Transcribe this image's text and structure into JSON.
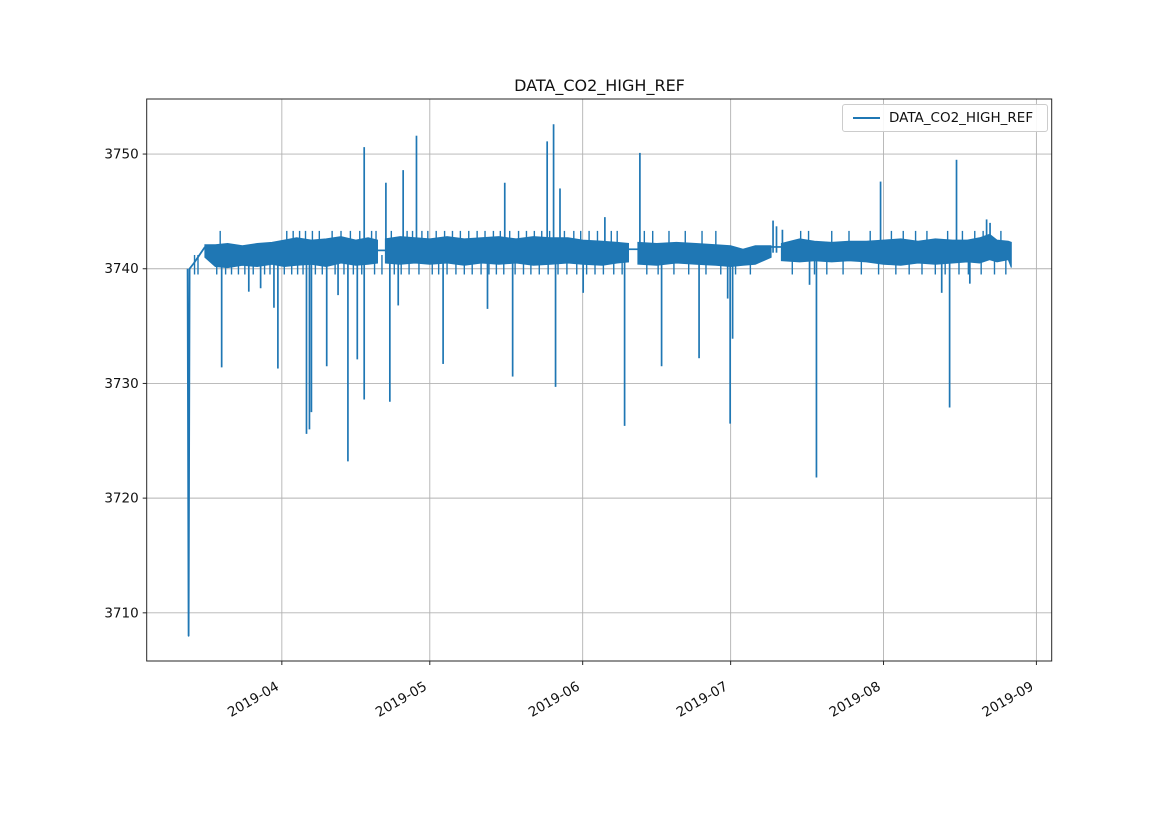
{
  "figure": {
    "title": "DATA_CO2_HIGH_REF",
    "background_color": "#ffffff"
  },
  "legend": {
    "label": "DATA_CO2_HIGH_REF",
    "line_sample_color": "#1f77b4"
  },
  "chart_data": {
    "type": "line",
    "title": "DATA_CO2_HIGH_REF",
    "line_color": "#1f77b4",
    "grid": true,
    "grid_color": "#b2b2b2",
    "legend": {
      "entries": [
        "DATA_CO2_HIGH_REF"
      ],
      "position": "upper right"
    },
    "x_axis": {
      "unit": "date",
      "tick_labels": [
        "2019-04",
        "2019-05",
        "2019-06",
        "2019-07",
        "2019-08",
        "2019-09"
      ],
      "tick_day_of_year": [
        91,
        121,
        152,
        182,
        213,
        244
      ],
      "range_day_of_year": [
        63.6,
        247.1
      ],
      "tick_label_rotation_deg": 30
    },
    "y_axis": {
      "ticks": [
        3710,
        3720,
        3730,
        3740,
        3750
      ],
      "range": [
        3705.8,
        3754.8
      ]
    },
    "series": [
      {
        "name": "DATA_CO2_HIGH_REF",
        "x_unit": "day_of_year_2019",
        "date_span": [
          "2019-03-13",
          "2019-08-27"
        ],
        "lead_in_points": [
          [
            71.9,
            3740.0
          ],
          [
            72.1,
            3708.0
          ],
          [
            72.3,
            3740.0
          ],
          [
            73.2,
            3740.5
          ],
          [
            75.4,
            3741.9
          ]
        ],
        "noise_band_segments": [
          [
            [
              75.4,
              3741.0,
              3742.1
            ],
            [
              77.5,
              3740.2,
              3742.1
            ],
            [
              80,
              3740.1,
              3742.2
            ],
            [
              83,
              3740.3,
              3742.0
            ],
            [
              86,
              3740.2,
              3742.2
            ],
            [
              89,
              3740.4,
              3742.3
            ],
            [
              91.5,
              3740.2,
              3742.5
            ],
            [
              94,
              3740.3,
              3742.7
            ],
            [
              97,
              3740.4,
              3742.5
            ],
            [
              100,
              3740.2,
              3742.6
            ],
            [
              103,
              3740.5,
              3742.8
            ],
            [
              106,
              3740.3,
              3742.5
            ],
            [
              108.5,
              3740.4,
              3742.7
            ],
            [
              110.4,
              3740.5,
              3742.5
            ]
          ],
          [
            [
              112.0,
              3740.5,
              3742.6
            ],
            [
              115,
              3740.4,
              3742.8
            ],
            [
              118,
              3740.5,
              3742.7
            ],
            [
              121,
              3740.4,
              3742.6
            ],
            [
              124.5,
              3740.5,
              3742.8
            ],
            [
              128,
              3740.3,
              3742.6
            ],
            [
              131.5,
              3740.5,
              3742.7
            ],
            [
              135,
              3740.4,
              3742.8
            ],
            [
              138.5,
              3740.5,
              3742.6
            ],
            [
              142,
              3740.3,
              3742.8
            ],
            [
              145.5,
              3740.4,
              3742.7
            ],
            [
              149,
              3740.5,
              3742.7
            ],
            [
              152,
              3740.4,
              3742.5
            ],
            [
              156,
              3740.3,
              3742.4
            ],
            [
              159,
              3740.5,
              3742.3
            ],
            [
              161.3,
              3740.6,
              3742.2
            ]
          ],
          [
            [
              163.2,
              3740.4,
              3742.3
            ],
            [
              167,
              3740.3,
              3742.2
            ],
            [
              171,
              3740.5,
              3742.3
            ],
            [
              175,
              3740.4,
              3742.2
            ],
            [
              179,
              3740.3,
              3742.1
            ],
            [
              182,
              3740.2,
              3742.0
            ],
            [
              184.5,
              3740.3,
              3741.7
            ],
            [
              187,
              3740.4,
              3742.0
            ],
            [
              190.2,
              3741.0,
              3742.0
            ]
          ],
          [
            [
              192.3,
              3740.7,
              3742.2
            ],
            [
              196,
              3740.6,
              3742.6
            ],
            [
              199,
              3740.7,
              3742.4
            ],
            [
              202.5,
              3740.6,
              3742.3
            ],
            [
              206,
              3740.7,
              3742.4
            ],
            [
              209.5,
              3740.6,
              3742.4
            ],
            [
              213,
              3740.4,
              3742.5
            ],
            [
              216.5,
              3740.3,
              3742.6
            ],
            [
              220,
              3740.5,
              3742.4
            ],
            [
              223.5,
              3740.4,
              3742.6
            ],
            [
              227,
              3740.5,
              3742.5
            ],
            [
              230,
              3740.6,
              3742.5
            ],
            [
              232.5,
              3740.5,
              3742.7
            ],
            [
              234.5,
              3740.8,
              3743.0
            ],
            [
              236,
              3740.6,
              3742.5
            ],
            [
              238.3,
              3740.8,
              3742.4
            ],
            [
              238.9,
              3740.1,
              3742.3
            ]
          ]
        ],
        "flat_segments": [
          [
            110.4,
            112.0,
            3741.6
          ],
          [
            161.3,
            163.2,
            3741.7
          ],
          [
            190.2,
            192.3,
            3741.9
          ]
        ],
        "up_spikes": [
          [
            107.7,
            3750.6
          ],
          [
            112.1,
            3747.5
          ],
          [
            115.6,
            3748.6
          ],
          [
            118.3,
            3751.6
          ],
          [
            136.2,
            3747.5
          ],
          [
            144.8,
            3751.1
          ],
          [
            146.1,
            3752.6
          ],
          [
            147.4,
            3747.0
          ],
          [
            156.5,
            3744.5
          ],
          [
            163.6,
            3750.1
          ],
          [
            190.6,
            3744.2
          ],
          [
            191.3,
            3743.7
          ],
          [
            192.5,
            3743.4
          ],
          [
            212.4,
            3747.6
          ],
          [
            227.8,
            3749.5
          ],
          [
            233.9,
            3744.3
          ],
          [
            234.6,
            3744.0
          ]
        ],
        "down_spikes": [
          [
            78.8,
            3731.4
          ],
          [
            84.3,
            3738.0
          ],
          [
            86.7,
            3738.3
          ],
          [
            89.4,
            3736.6
          ],
          [
            90.2,
            3731.3
          ],
          [
            96.0,
            3725.6
          ],
          [
            96.6,
            3726.0
          ],
          [
            97.0,
            3727.5
          ],
          [
            100.1,
            3731.5
          ],
          [
            102.4,
            3737.7
          ],
          [
            104.4,
            3723.2
          ],
          [
            106.3,
            3732.1
          ],
          [
            107.7,
            3728.6
          ],
          [
            112.9,
            3728.4
          ],
          [
            114.6,
            3736.8
          ],
          [
            123.7,
            3731.7
          ],
          [
            132.7,
            3736.5
          ],
          [
            137.8,
            3730.6
          ],
          [
            146.5,
            3729.7
          ],
          [
            152.1,
            3737.9
          ],
          [
            160.5,
            3726.3
          ],
          [
            168.0,
            3731.5
          ],
          [
            175.6,
            3732.2
          ],
          [
            181.4,
            3737.4
          ],
          [
            181.9,
            3726.5
          ],
          [
            182.4,
            3733.9
          ],
          [
            198.0,
            3738.6
          ],
          [
            199.4,
            3721.8
          ],
          [
            224.8,
            3737.9
          ],
          [
            226.4,
            3727.9
          ],
          [
            230.5,
            3738.7
          ]
        ],
        "minor_up_ticks": {
          "value": 3743.3,
          "days": [
            78.5,
            92.0,
            93.3,
            94.6,
            95.8,
            97.2,
            98.6,
            101.2,
            103.0,
            104.9,
            106.8,
            109.2,
            110.1,
            113.2,
            116.4,
            117.5,
            119.4,
            120.6,
            122.3,
            124.0,
            125.6,
            127.2,
            128.9,
            130.6,
            132.2,
            133.9,
            135.3,
            137.2,
            139.0,
            140.6,
            142.2,
            143.7,
            145.3,
            148.3,
            150.2,
            151.6,
            153.3,
            155.0,
            157.8,
            159.0,
            164.5,
            166.2,
            169.5,
            172.8,
            176.2,
            179.0,
            196.2,
            197.8,
            202.5,
            206.0,
            210.3,
            214.6,
            217.0,
            219.5,
            221.8,
            226.0,
            229.0,
            231.5,
            233.2,
            236.8
          ]
        },
        "minor_down_ticks": {
          "value": 3739.5,
          "days": [
            73.3,
            74.0,
            77.8,
            79.6,
            80.8,
            82.2,
            83.5,
            85.2,
            87.5,
            88.6,
            91.5,
            93.0,
            94.2,
            95.3,
            97.8,
            99.2,
            101.8,
            103.6,
            105.5,
            107.2,
            109.8,
            111.3,
            113.8,
            115.2,
            116.8,
            118.8,
            121.5,
            122.8,
            124.5,
            126.3,
            128.0,
            129.6,
            131.4,
            133.0,
            134.5,
            136.0,
            138.3,
            140.0,
            141.5,
            143.2,
            145.0,
            147.0,
            148.8,
            150.8,
            152.8,
            154.5,
            156.2,
            158.3,
            160.0,
            165.0,
            167.3,
            170.5,
            173.5,
            177.0,
            180.0,
            183.0,
            186.0,
            194.5,
            199.0,
            201.5,
            204.8,
            208.5,
            212.0,
            215.5,
            218.2,
            220.8,
            223.5,
            225.5,
            228.3,
            230.2,
            232.8,
            235.5,
            237.8
          ]
        }
      }
    ]
  }
}
